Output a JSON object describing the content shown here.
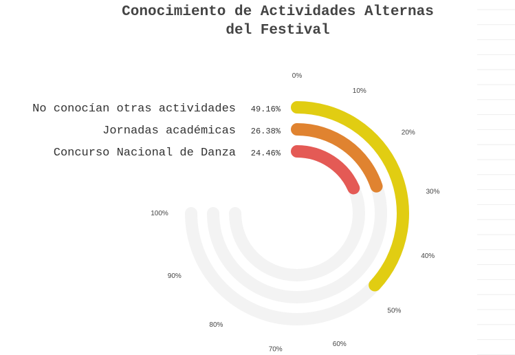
{
  "chart_data": {
    "type": "radial-bar",
    "title_lines": [
      "Conocimiento de Actividades Alternas",
      "del Festival"
    ],
    "categories": [
      "No conocían otras actividades",
      "Jornadas académicas",
      "Concurso Nacional de Danza"
    ],
    "values": [
      49.16,
      26.38,
      24.46
    ],
    "value_labels": [
      "49.16%",
      "26.38%",
      "24.46%"
    ],
    "colors": [
      "#e1cd12",
      "#e08330",
      "#e45a55"
    ],
    "track_color": "#f3f3f3",
    "axis_max": 100,
    "arc_extent_percent_of_circle": 75,
    "ticks": [
      "0%",
      "10%",
      "20%",
      "30%",
      "40%",
      "50%",
      "60%",
      "70%",
      "80%",
      "90%",
      "100%"
    ],
    "legend": "left, aligned with each ring"
  }
}
